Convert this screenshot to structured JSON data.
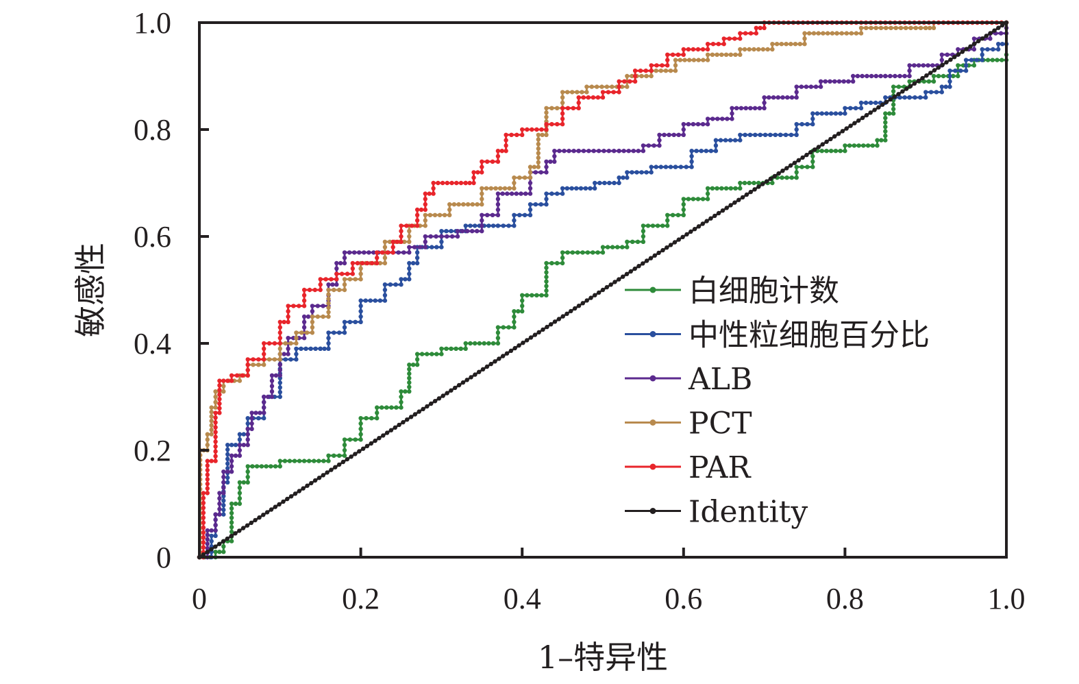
{
  "chart_data": {
    "type": "line",
    "title": "",
    "xlabel": "1–特异性",
    "ylabel": "敏感性",
    "xlim": [
      0,
      1
    ],
    "ylim": [
      0,
      1
    ],
    "xticks": [
      "0",
      "0.2",
      "0.4",
      "0.6",
      "0.8",
      "1.0"
    ],
    "yticks": [
      "0",
      "0.2",
      "0.4",
      "0.6",
      "0.8",
      "1.0"
    ],
    "tick_values": [
      0,
      0.2,
      0.4,
      0.6,
      0.8,
      1.0
    ],
    "grid": false,
    "legend_position": "bottom-right",
    "series": [
      {
        "name": "白细胞计数",
        "color": "#2e8b3a",
        "points": [
          [
            0,
            0
          ],
          [
            0.02,
            0.01
          ],
          [
            0.03,
            0.03
          ],
          [
            0.04,
            0.1
          ],
          [
            0.05,
            0.14
          ],
          [
            0.06,
            0.17
          ],
          [
            0.1,
            0.18
          ],
          [
            0.16,
            0.19
          ],
          [
            0.18,
            0.22
          ],
          [
            0.2,
            0.26
          ],
          [
            0.22,
            0.28
          ],
          [
            0.25,
            0.31
          ],
          [
            0.26,
            0.36
          ],
          [
            0.27,
            0.38
          ],
          [
            0.3,
            0.39
          ],
          [
            0.33,
            0.4
          ],
          [
            0.37,
            0.43
          ],
          [
            0.39,
            0.46
          ],
          [
            0.4,
            0.49
          ],
          [
            0.43,
            0.55
          ],
          [
            0.45,
            0.57
          ],
          [
            0.5,
            0.58
          ],
          [
            0.53,
            0.59
          ],
          [
            0.55,
            0.62
          ],
          [
            0.58,
            0.64
          ],
          [
            0.6,
            0.67
          ],
          [
            0.63,
            0.69
          ],
          [
            0.67,
            0.7
          ],
          [
            0.71,
            0.71
          ],
          [
            0.74,
            0.73
          ],
          [
            0.76,
            0.76
          ],
          [
            0.8,
            0.77
          ],
          [
            0.84,
            0.78
          ],
          [
            0.85,
            0.83
          ],
          [
            0.86,
            0.88
          ],
          [
            0.88,
            0.89
          ],
          [
            0.91,
            0.9
          ],
          [
            0.94,
            0.92
          ],
          [
            0.96,
            0.93
          ],
          [
            1.0,
            0.94
          ]
        ]
      },
      {
        "name": "中性粒细胞百分比",
        "color": "#2a4f9e",
        "points": [
          [
            0,
            0
          ],
          [
            0.01,
            0
          ],
          [
            0.015,
            0.04
          ],
          [
            0.02,
            0.08
          ],
          [
            0.03,
            0.14
          ],
          [
            0.035,
            0.21
          ],
          [
            0.05,
            0.23
          ],
          [
            0.06,
            0.26
          ],
          [
            0.08,
            0.3
          ],
          [
            0.1,
            0.37
          ],
          [
            0.12,
            0.39
          ],
          [
            0.15,
            0.39
          ],
          [
            0.16,
            0.42
          ],
          [
            0.18,
            0.44
          ],
          [
            0.2,
            0.48
          ],
          [
            0.23,
            0.51
          ],
          [
            0.25,
            0.52
          ],
          [
            0.26,
            0.55
          ],
          [
            0.27,
            0.58
          ],
          [
            0.3,
            0.61
          ],
          [
            0.33,
            0.62
          ],
          [
            0.37,
            0.62
          ],
          [
            0.39,
            0.64
          ],
          [
            0.41,
            0.66
          ],
          [
            0.43,
            0.68
          ],
          [
            0.45,
            0.69
          ],
          [
            0.49,
            0.7
          ],
          [
            0.52,
            0.71
          ],
          [
            0.53,
            0.72
          ],
          [
            0.56,
            0.73
          ],
          [
            0.59,
            0.73
          ],
          [
            0.61,
            0.76
          ],
          [
            0.64,
            0.78
          ],
          [
            0.67,
            0.79
          ],
          [
            0.72,
            0.79
          ],
          [
            0.74,
            0.81
          ],
          [
            0.76,
            0.83
          ],
          [
            0.8,
            0.84
          ],
          [
            0.82,
            0.85
          ],
          [
            0.85,
            0.86
          ],
          [
            0.88,
            0.86
          ],
          [
            0.9,
            0.87
          ],
          [
            0.92,
            0.88
          ],
          [
            0.93,
            0.91
          ],
          [
            0.95,
            0.93
          ],
          [
            0.97,
            0.95
          ],
          [
            0.99,
            0.96
          ],
          [
            1.0,
            0.96
          ]
        ]
      },
      {
        "name": "ALB",
        "color": "#5b2a8e",
        "points": [
          [
            0,
            0
          ],
          [
            0.01,
            0.05
          ],
          [
            0.02,
            0.08
          ],
          [
            0.025,
            0.12
          ],
          [
            0.03,
            0.16
          ],
          [
            0.04,
            0.19
          ],
          [
            0.05,
            0.21
          ],
          [
            0.06,
            0.24
          ],
          [
            0.065,
            0.27
          ],
          [
            0.08,
            0.3
          ],
          [
            0.09,
            0.34
          ],
          [
            0.1,
            0.38
          ],
          [
            0.11,
            0.41
          ],
          [
            0.13,
            0.45
          ],
          [
            0.14,
            0.47
          ],
          [
            0.16,
            0.51
          ],
          [
            0.17,
            0.55
          ],
          [
            0.18,
            0.57
          ],
          [
            0.24,
            0.57
          ],
          [
            0.26,
            0.58
          ],
          [
            0.28,
            0.6
          ],
          [
            0.3,
            0.6
          ],
          [
            0.32,
            0.61
          ],
          [
            0.35,
            0.64
          ],
          [
            0.37,
            0.68
          ],
          [
            0.41,
            0.72
          ],
          [
            0.43,
            0.74
          ],
          [
            0.44,
            0.76
          ],
          [
            0.47,
            0.76
          ],
          [
            0.52,
            0.76
          ],
          [
            0.55,
            0.77
          ],
          [
            0.57,
            0.79
          ],
          [
            0.6,
            0.81
          ],
          [
            0.63,
            0.82
          ],
          [
            0.66,
            0.84
          ],
          [
            0.7,
            0.86
          ],
          [
            0.74,
            0.88
          ],
          [
            0.77,
            0.89
          ],
          [
            0.81,
            0.9
          ],
          [
            0.85,
            0.9
          ],
          [
            0.88,
            0.92
          ],
          [
            0.92,
            0.94
          ],
          [
            0.94,
            0.95
          ],
          [
            0.96,
            0.97
          ],
          [
            0.98,
            0.98
          ],
          [
            1.0,
            0.99
          ]
        ]
      },
      {
        "name": "PCT",
        "color": "#b88a4e",
        "points": [
          [
            0,
            0
          ],
          [
            0.001,
            0.2
          ],
          [
            0.01,
            0.23
          ],
          [
            0.015,
            0.28
          ],
          [
            0.02,
            0.31
          ],
          [
            0.03,
            0.33
          ],
          [
            0.05,
            0.34
          ],
          [
            0.06,
            0.36
          ],
          [
            0.08,
            0.37
          ],
          [
            0.1,
            0.4
          ],
          [
            0.12,
            0.42
          ],
          [
            0.14,
            0.45
          ],
          [
            0.16,
            0.5
          ],
          [
            0.18,
            0.52
          ],
          [
            0.2,
            0.55
          ],
          [
            0.23,
            0.59
          ],
          [
            0.26,
            0.62
          ],
          [
            0.28,
            0.64
          ],
          [
            0.31,
            0.66
          ],
          [
            0.35,
            0.69
          ],
          [
            0.39,
            0.71
          ],
          [
            0.41,
            0.73
          ],
          [
            0.42,
            0.79
          ],
          [
            0.43,
            0.84
          ],
          [
            0.45,
            0.87
          ],
          [
            0.48,
            0.88
          ],
          [
            0.53,
            0.9
          ],
          [
            0.56,
            0.91
          ],
          [
            0.59,
            0.93
          ],
          [
            0.63,
            0.94
          ],
          [
            0.67,
            0.95
          ],
          [
            0.71,
            0.96
          ],
          [
            0.75,
            0.98
          ],
          [
            0.79,
            0.98
          ],
          [
            0.82,
            0.99
          ],
          [
            0.9,
            0.99
          ],
          [
            0.91,
            1.0
          ],
          [
            1.0,
            1.0
          ]
        ]
      },
      {
        "name": "PAR",
        "color": "#e8252b",
        "points": [
          [
            0,
            0
          ],
          [
            0.005,
            0.12
          ],
          [
            0.01,
            0.18
          ],
          [
            0.02,
            0.27
          ],
          [
            0.025,
            0.33
          ],
          [
            0.04,
            0.34
          ],
          [
            0.06,
            0.37
          ],
          [
            0.08,
            0.4
          ],
          [
            0.1,
            0.44
          ],
          [
            0.11,
            0.47
          ],
          [
            0.13,
            0.5
          ],
          [
            0.15,
            0.52
          ],
          [
            0.17,
            0.53
          ],
          [
            0.19,
            0.55
          ],
          [
            0.22,
            0.57
          ],
          [
            0.24,
            0.59
          ],
          [
            0.25,
            0.62
          ],
          [
            0.27,
            0.65
          ],
          [
            0.28,
            0.68
          ],
          [
            0.29,
            0.7
          ],
          [
            0.33,
            0.7
          ],
          [
            0.34,
            0.72
          ],
          [
            0.35,
            0.74
          ],
          [
            0.37,
            0.76
          ],
          [
            0.38,
            0.79
          ],
          [
            0.4,
            0.8
          ],
          [
            0.43,
            0.81
          ],
          [
            0.45,
            0.84
          ],
          [
            0.47,
            0.86
          ],
          [
            0.5,
            0.87
          ],
          [
            0.52,
            0.89
          ],
          [
            0.54,
            0.91
          ],
          [
            0.56,
            0.92
          ],
          [
            0.58,
            0.94
          ],
          [
            0.6,
            0.95
          ],
          [
            0.63,
            0.96
          ],
          [
            0.65,
            0.97
          ],
          [
            0.67,
            0.98
          ],
          [
            0.69,
            0.99
          ],
          [
            0.7,
            1.0
          ],
          [
            1.0,
            1.0
          ]
        ]
      },
      {
        "name": "Identity",
        "color": "#231f20",
        "points": [
          [
            0,
            0
          ],
          [
            1,
            1
          ]
        ]
      }
    ]
  }
}
